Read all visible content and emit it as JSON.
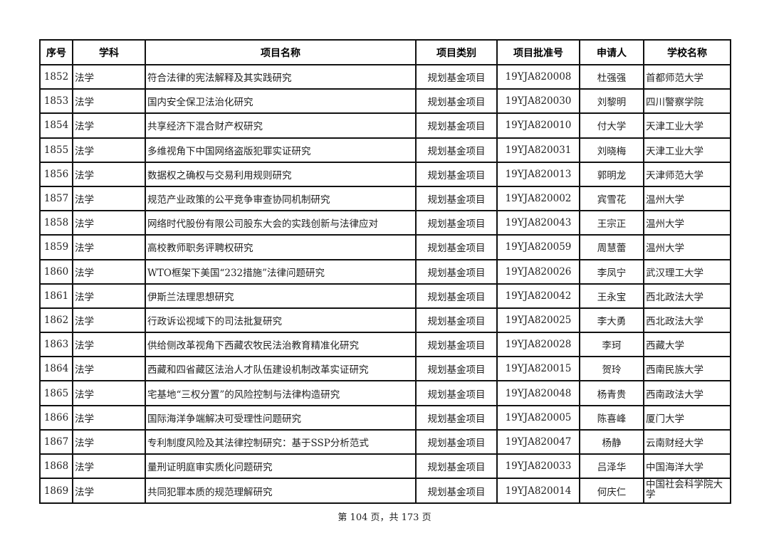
{
  "table": {
    "headers": [
      "序号",
      "学科",
      "项目名称",
      "项目类别",
      "项目批准号",
      "申请人",
      "学校名称"
    ],
    "rows": [
      [
        "1852",
        "法学",
        "符合法律的宪法解释及其实践研究",
        "规划基金项目",
        "19YJA820008",
        "杜强强",
        "首都师范大学"
      ],
      [
        "1853",
        "法学",
        "国内安全保卫法治化研究",
        "规划基金项目",
        "19YJA820030",
        "刘黎明",
        "四川警察学院"
      ],
      [
        "1854",
        "法学",
        "共享经济下混合财产权研究",
        "规划基金项目",
        "19YJA820010",
        "付大学",
        "天津工业大学"
      ],
      [
        "1855",
        "法学",
        "多维视角下中国网络盗版犯罪实证研究",
        "规划基金项目",
        "19YJA820031",
        "刘晓梅",
        "天津工业大学"
      ],
      [
        "1856",
        "法学",
        "数据权之确权与交易利用规则研究",
        "规划基金项目",
        "19YJA820013",
        "郭明龙",
        "天津师范大学"
      ],
      [
        "1857",
        "法学",
        "规范产业政策的公平竞争审查协同机制研究",
        "规划基金项目",
        "19YJA820002",
        "宾雪花",
        "温州大学"
      ],
      [
        "1858",
        "法学",
        "网络时代股份有限公司股东大会的实践创新与法律应对",
        "规划基金项目",
        "19YJA820043",
        "王宗正",
        "温州大学"
      ],
      [
        "1859",
        "法学",
        "高校教师职务评聘权研究",
        "规划基金项目",
        "19YJA820059",
        "周慧蕾",
        "温州大学"
      ],
      [
        "1860",
        "法学",
        "WTO框架下美国“232措施”法律问题研究",
        "规划基金项目",
        "19YJA820026",
        "李凤宁",
        "武汉理工大学"
      ],
      [
        "1861",
        "法学",
        "伊斯兰法理思想研究",
        "规划基金项目",
        "19YJA820042",
        "王永宝",
        "西北政法大学"
      ],
      [
        "1862",
        "法学",
        "行政诉讼视域下的司法批复研究",
        "规划基金项目",
        "19YJA820025",
        "李大勇",
        "西北政法大学"
      ],
      [
        "1863",
        "法学",
        "供给侧改革视角下西藏农牧民法治教育精准化研究",
        "规划基金项目",
        "19YJA820028",
        "李珂",
        "西藏大学"
      ],
      [
        "1864",
        "法学",
        "西藏和四省藏区法治人才队伍建设机制改革实证研究",
        "规划基金项目",
        "19YJA820015",
        "贺玲",
        "西南民族大学"
      ],
      [
        "1865",
        "法学",
        "宅基地“三权分置”的风险控制与法律构造研究",
        "规划基金项目",
        "19YJA820048",
        "杨青贵",
        "西南政法大学"
      ],
      [
        "1866",
        "法学",
        "国际海洋争端解决可受理性问题研究",
        "规划基金项目",
        "19YJA820005",
        "陈喜峰",
        "厦门大学"
      ],
      [
        "1867",
        "法学",
        "专利制度风险及其法律控制研究：基于SSP分析范式",
        "规划基金项目",
        "19YJA820047",
        "杨静",
        "云南财经大学"
      ],
      [
        "1868",
        "法学",
        "量刑证明庭审实质化问题研究",
        "规划基金项目",
        "19YJA820033",
        "吕泽华",
        "中国海洋大学"
      ],
      [
        "1869",
        "法学",
        "共同犯罪本质的规范理解研究",
        "规划基金项目",
        "19YJA820014",
        "何庆仁",
        "中国社会科学院大学"
      ]
    ]
  },
  "footer": {
    "page_text": "第 104 页，共 173 页"
  }
}
